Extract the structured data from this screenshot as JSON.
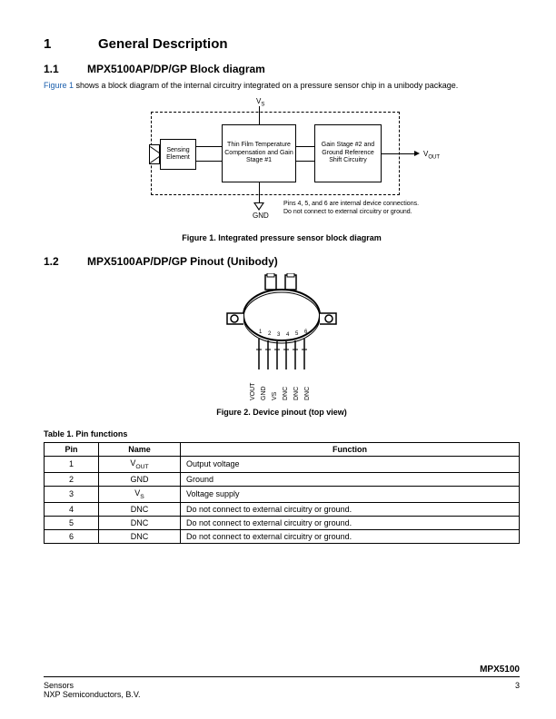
{
  "section": {
    "num": "1",
    "title": "General Description"
  },
  "sub1": {
    "num": "1.1",
    "title": "MPX5100AP/DP/GP Block diagram",
    "link": "Figure 1",
    "text": " shows a block diagram of the internal circuitry integrated on a pressure sensor chip in a unibody package."
  },
  "diagram": {
    "vs": "V",
    "vs_sub": "S",
    "vout": "V",
    "vout_sub": "OUT",
    "gnd": "GND",
    "sensing": "Sensing Element",
    "comp": "Thin Film Temperature Compensation and Gain Stage #1",
    "gain": "Gain Stage #2 and Ground Reference Shift Circuitry",
    "note1": "Pins 4, 5, and 6 are internal device connections.",
    "note2": "Do not connect to external circuitry or ground.",
    "caption": "Figure 1. Integrated pressure sensor block diagram"
  },
  "sub2": {
    "num": "1.2",
    "title": "MPX5100AP/DP/GP Pinout (Unibody)",
    "caption": "Figure 2. Device pinout (top view)"
  },
  "pinout": {
    "numbers": [
      "1",
      "2",
      "3",
      "4",
      "5",
      "6"
    ],
    "labels": [
      "VOUT",
      "GND",
      "VS",
      "DNC",
      "DNC",
      "DNC"
    ]
  },
  "table": {
    "title": "Table 1. Pin functions",
    "headers": [
      "Pin",
      "Name",
      "Function"
    ],
    "rows": [
      {
        "pin": "1",
        "name": "V",
        "name_sub": "OUT",
        "func": "Output voltage"
      },
      {
        "pin": "2",
        "name": "GND",
        "func": "Ground"
      },
      {
        "pin": "3",
        "name": "V",
        "name_sub": "S",
        "func": "Voltage supply"
      },
      {
        "pin": "4",
        "name": "DNC",
        "func": "Do not connect to external circuitry or ground."
      },
      {
        "pin": "5",
        "name": "DNC",
        "func": "Do not connect to external circuitry or ground."
      },
      {
        "pin": "6",
        "name": "DNC",
        "func": "Do not connect to external circuitry or ground."
      }
    ]
  },
  "footer": {
    "part": "MPX5100",
    "left1": "Sensors",
    "left2": "NXP Semiconductors, B.V.",
    "page": "3"
  }
}
